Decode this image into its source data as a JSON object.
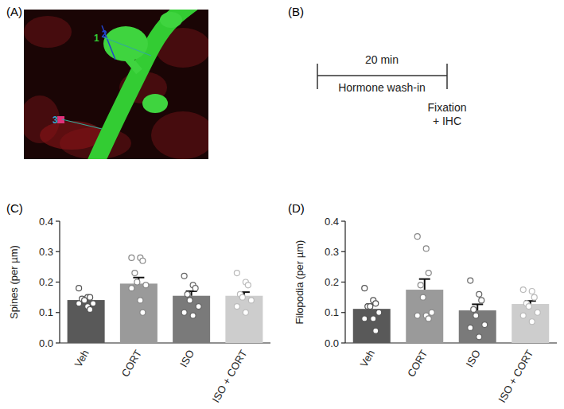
{
  "chart_data": [
    {
      "type": "bar",
      "title": "(C)",
      "y_label": "Spines (per µm)",
      "categories": [
        "Veh",
        "CORT",
        "ISO",
        "ISO + CORT"
      ],
      "values": [
        0.141,
        0.195,
        0.155,
        0.155
      ],
      "errors": [
        0.008,
        0.02,
        0.015,
        0.012
      ],
      "points": [
        [
          0.18,
          0.15,
          0.15,
          0.145,
          0.14,
          0.13,
          0.13,
          0.12,
          0.11
        ],
        [
          0.28,
          0.28,
          0.27,
          0.23,
          0.2,
          0.19,
          0.18,
          0.14,
          0.1
        ],
        [
          0.22,
          0.19,
          0.18,
          0.16,
          0.14,
          0.12,
          0.1,
          0.09
        ],
        [
          0.23,
          0.2,
          0.19,
          0.16,
          0.15,
          0.14,
          0.12,
          0.1
        ]
      ],
      "colors": [
        "#595959",
        "#9a9a9a",
        "#7a7a7a",
        "#cdcdcd"
      ],
      "ylim": [
        0,
        0.4
      ],
      "yticks": [
        {
          "value": 0,
          "label": "0.0"
        },
        0.1,
        0.2,
        0.3,
        0.4
      ]
    },
    {
      "type": "bar",
      "title": "(D)",
      "y_label": "Filopodia (per µm)",
      "categories": [
        "Veh",
        "CORT",
        "ISO",
        "ISO + CORT"
      ],
      "values": [
        0.112,
        0.175,
        0.107,
        0.128
      ],
      "errors": [
        0.015,
        0.035,
        0.02,
        0.01
      ],
      "points": [
        [
          0.18,
          0.14,
          0.13,
          0.12,
          0.12,
          0.1,
          0.08,
          0.08,
          0.04
        ],
        [
          0.35,
          0.31,
          0.23,
          0.19,
          0.15,
          0.1,
          0.09,
          0.09,
          0.08
        ],
        [
          0.205,
          0.16,
          0.14,
          0.11,
          0.09,
          0.06,
          0.05,
          0.02
        ],
        [
          0.175,
          0.17,
          0.15,
          0.13,
          0.12,
          0.1,
          0.09,
          0.07
        ]
      ],
      "colors": [
        "#595959",
        "#9a9a9a",
        "#7a7a7a",
        "#cdcdcd"
      ],
      "ylim": [
        0,
        0.4
      ],
      "yticks": [
        {
          "value": 0,
          "label": "0.0"
        },
        0.1,
        0.2,
        0.3,
        0.4
      ]
    }
  ],
  "panels": {
    "image_title": "(A)",
    "image_labels": [
      "1",
      "2",
      "3"
    ],
    "timeline_title": "(B)",
    "timeline_duration": "20 min",
    "timeline_phase": "Hormone wash-in",
    "timeline_end": [
      "Fixation",
      "+ IHC"
    ]
  }
}
